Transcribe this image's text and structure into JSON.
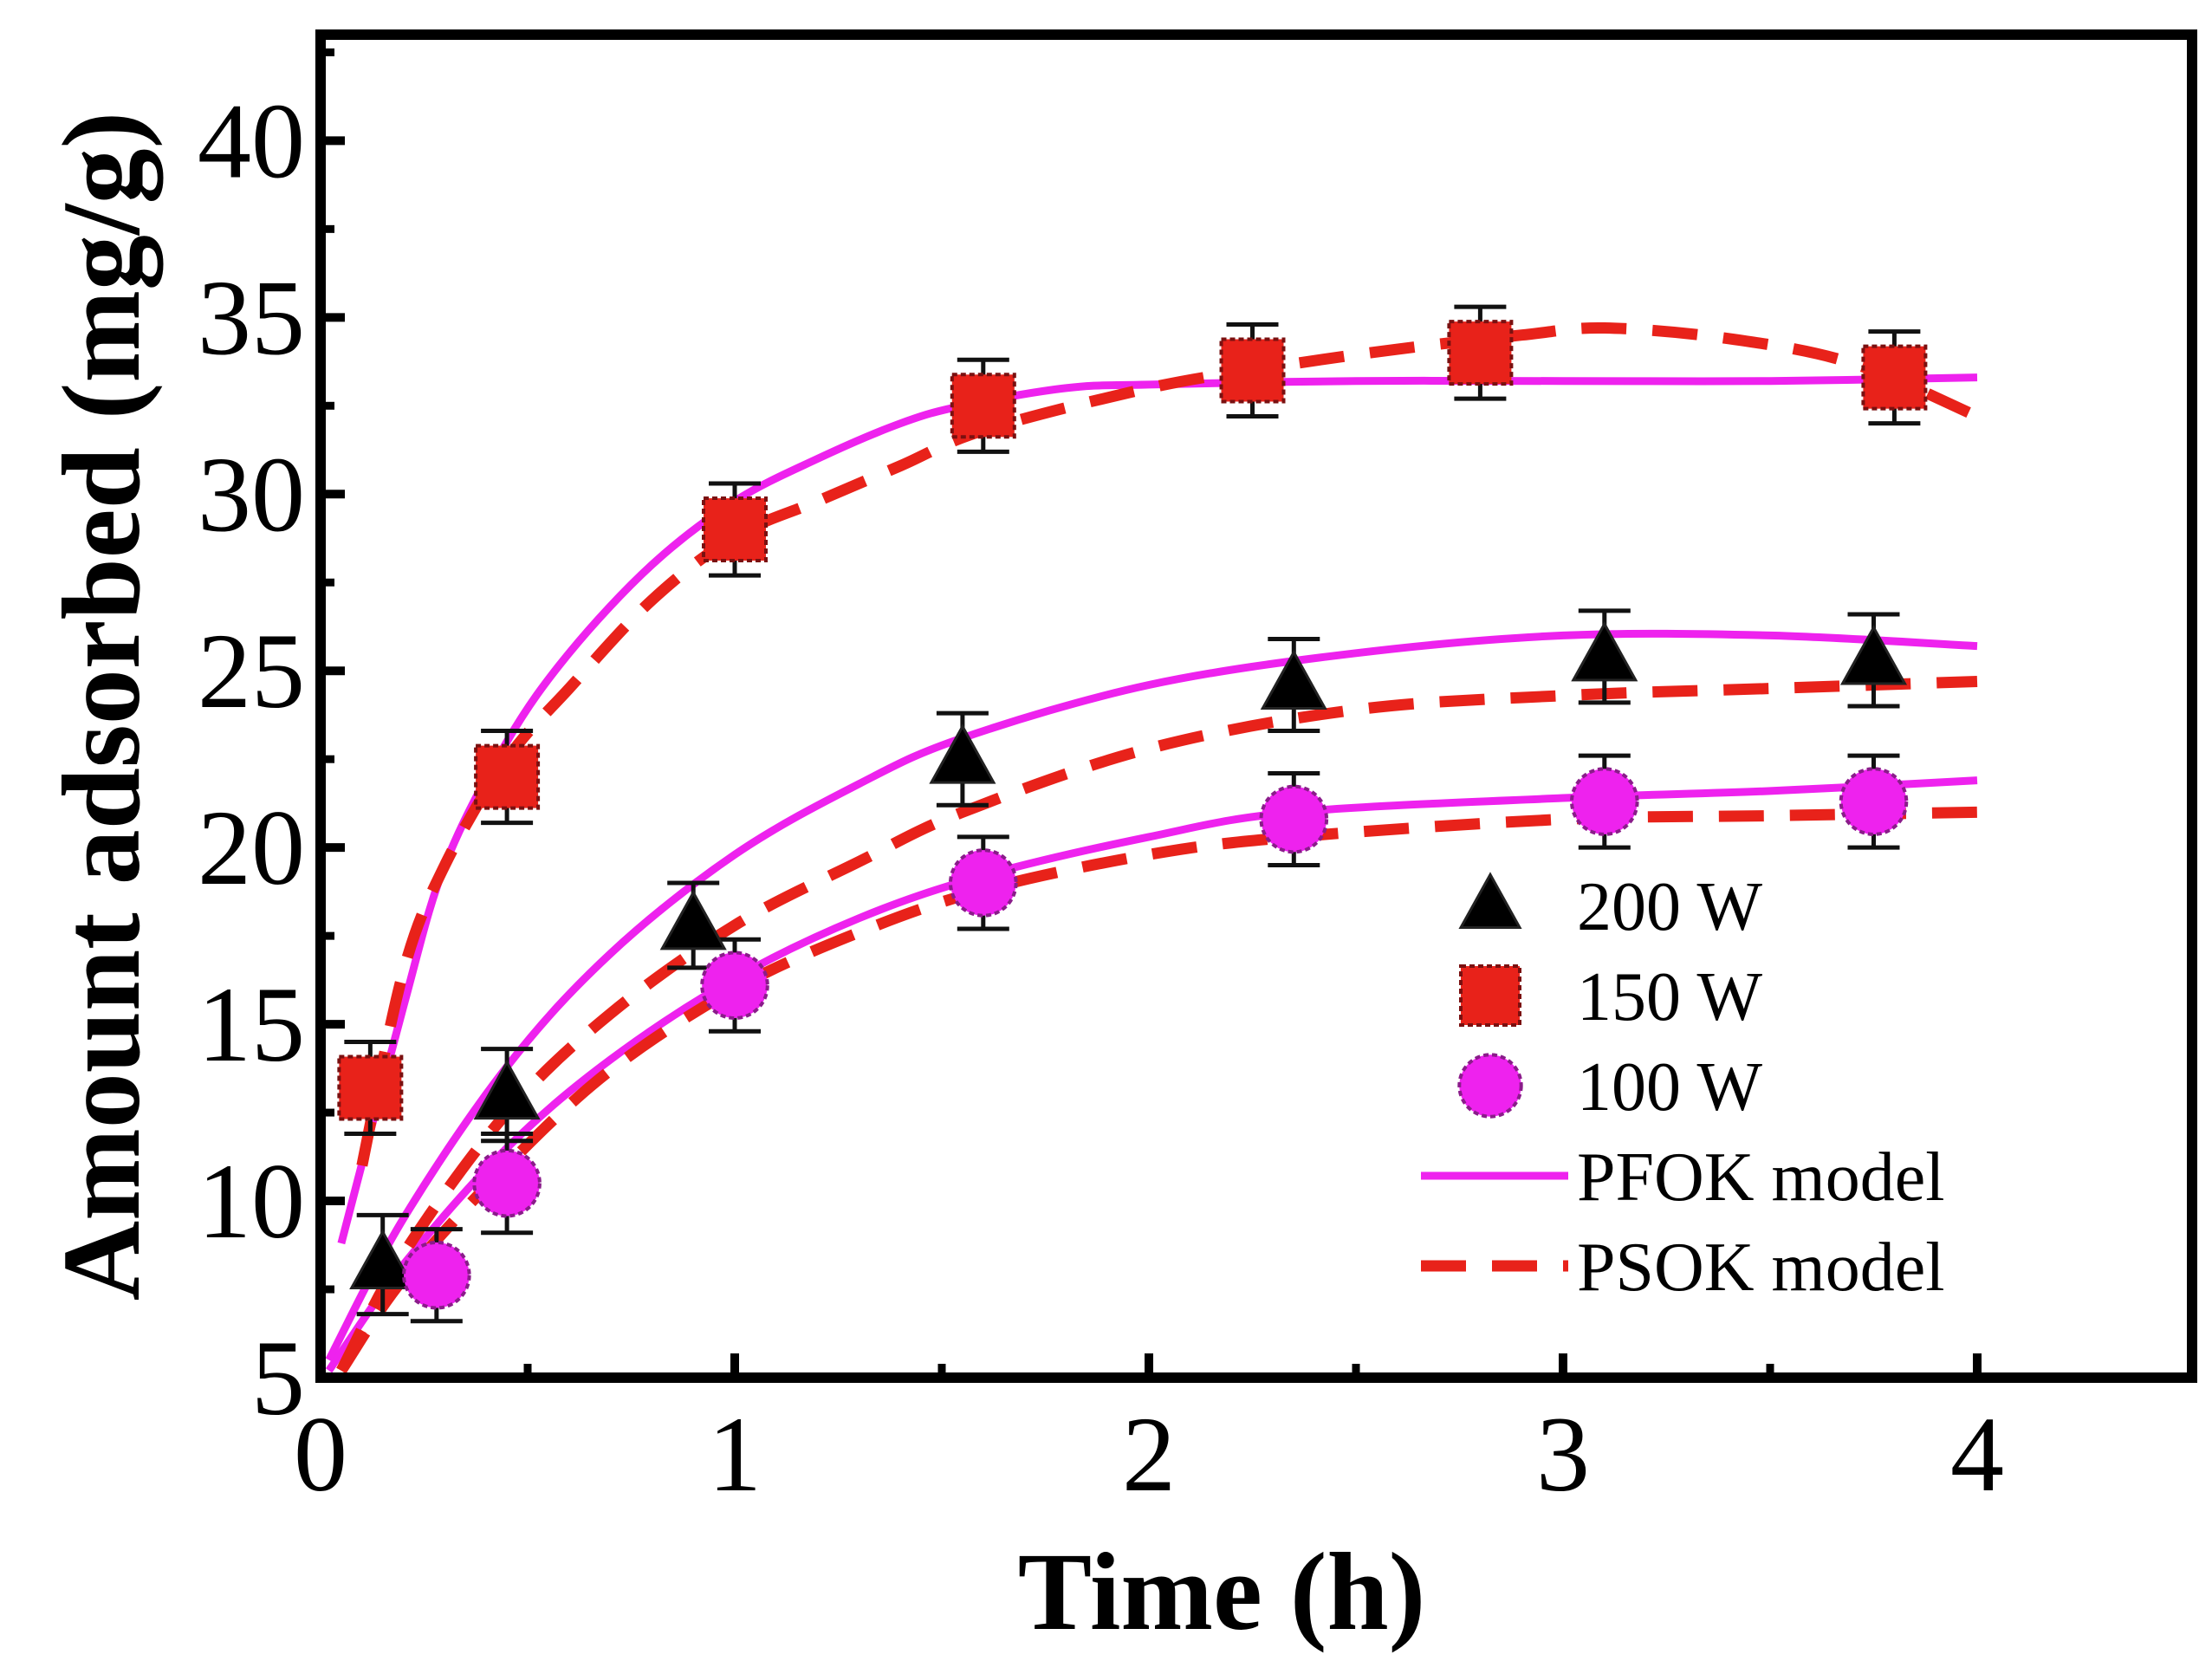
{
  "chart_data": {
    "type": "scatter",
    "title": "",
    "xlabel": "Time (h)",
    "ylabel": "Amount adsorbed (mg/g)",
    "xlim": [
      0,
      4.5
    ],
    "ylim": [
      5,
      43
    ],
    "xticks": [
      0,
      1,
      2,
      3,
      4
    ],
    "yticks": [
      5,
      10,
      15,
      20,
      25,
      30,
      35,
      40
    ],
    "legend_position": "bottom-right",
    "series": [
      {
        "name": "200 W",
        "marker": "triangle",
        "color": "#000000",
        "x": [
          0.15,
          0.45,
          0.9,
          1.55,
          2.35,
          3.1,
          3.75
        ],
        "y": [
          8.2,
          13.0,
          17.8,
          22.5,
          24.6,
          25.4,
          25.3
        ],
        "error": [
          1.4,
          1.3,
          1.2,
          1.3,
          1.3,
          1.3,
          1.3
        ]
      },
      {
        "name": "150 W",
        "marker": "square",
        "color": "#e8221a",
        "x": [
          0.12,
          0.45,
          1.0,
          1.6,
          2.25,
          2.8,
          3.8
        ],
        "y": [
          13.2,
          22.0,
          29.0,
          32.5,
          33.5,
          34.0,
          33.3
        ],
        "error": [
          1.3,
          1.3,
          1.3,
          1.3,
          1.3,
          1.3,
          1.3
        ]
      },
      {
        "name": "100 W",
        "marker": "circle",
        "color": "#ee22ee",
        "x": [
          0.28,
          0.45,
          1.0,
          1.6,
          2.35,
          3.1,
          3.75
        ],
        "y": [
          7.9,
          10.5,
          16.1,
          19.0,
          20.8,
          21.3,
          21.3
        ],
        "error": [
          1.3,
          1.4,
          1.3,
          1.3,
          1.3,
          1.3,
          1.3
        ]
      },
      {
        "name": "PFOK model",
        "style": "solid",
        "color": "#ee22ee",
        "curves": [
          {
            "x": [
              0.05,
              0.2,
              0.3,
              0.45,
              0.6,
              0.8,
              1.0,
              1.2,
              1.4,
              1.55,
              1.8,
              2.0,
              2.5,
              3.0,
              3.5,
              4.0
            ],
            "y": [
              8.8,
              15.5,
              19.5,
              23.0,
              25.5,
              28.0,
              29.8,
              31.0,
              32.0,
              32.5,
              33.0,
              33.1,
              33.2,
              33.2,
              33.2,
              33.3
            ]
          },
          {
            "x": [
              0.02,
              0.2,
              0.45,
              0.7,
              1.0,
              1.3,
              1.55,
              2.0,
              2.5,
              3.0,
              3.5,
              4.0
            ],
            "y": [
              5.5,
              9.5,
              13.8,
              17.0,
              19.8,
              21.8,
              23.1,
              24.6,
              25.5,
              26.0,
              26.0,
              25.7
            ]
          },
          {
            "x": [
              0.02,
              0.2,
              0.45,
              0.7,
              1.0,
              1.3,
              1.6,
              2.0,
              2.35,
              3.0,
              3.5,
              4.0
            ],
            "y": [
              5.2,
              8.2,
              11.5,
              14.0,
              16.3,
              18.0,
              19.2,
              20.3,
              21.0,
              21.4,
              21.6,
              21.9
            ]
          }
        ]
      },
      {
        "name": "PSOK model",
        "style": "dashed",
        "color": "#e8221a",
        "curves": [
          {
            "x": [
              0.1,
              0.2,
              0.3,
              0.45,
              0.6,
              0.8,
              1.0,
              1.2,
              1.4,
              1.6,
              2.0,
              2.3,
              2.6,
              2.9,
              3.1,
              3.4,
              3.7,
              4.0
            ],
            "y": [
              11.0,
              16.5,
              19.5,
              22.5,
              24.5,
              27.0,
              28.8,
              29.8,
              30.8,
              31.8,
              33.0,
              33.6,
              34.1,
              34.5,
              34.7,
              34.4,
              33.7,
              32.2
            ]
          },
          {
            "x": [
              0.05,
              0.2,
              0.45,
              0.7,
              1.0,
              1.3,
              1.55,
              2.0,
              2.5,
              3.0,
              3.5,
              4.0
            ],
            "y": [
              5.2,
              8.5,
              12.5,
              15.3,
              17.8,
              19.6,
              21.0,
              22.8,
              23.9,
              24.3,
              24.5,
              24.7
            ]
          },
          {
            "x": [
              0.05,
              0.2,
              0.45,
              0.7,
              1.0,
              1.3,
              1.6,
              2.0,
              2.35,
              3.0,
              3.5,
              4.0
            ],
            "y": [
              5.2,
              7.8,
              11.0,
              13.7,
              16.0,
              17.6,
              18.8,
              19.8,
              20.3,
              20.8,
              20.9,
              21.0
            ]
          }
        ]
      }
    ]
  }
}
